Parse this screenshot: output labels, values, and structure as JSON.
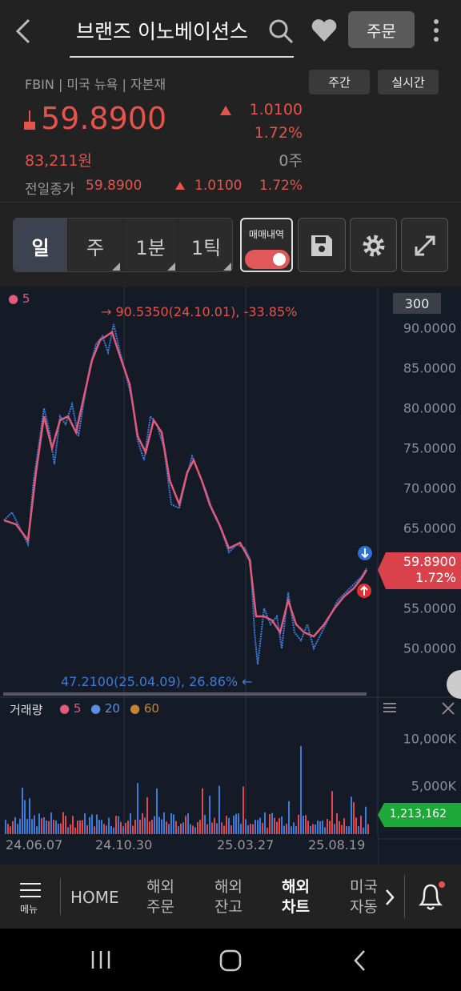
{
  "header": {
    "title": "브랜즈 이노베이션스",
    "order_button": "주문"
  },
  "info": {
    "ticker_line": "FBIN | 미국 뉴욕 | 자본재",
    "tabs": [
      "주간",
      "실시간"
    ],
    "price": "59.8900",
    "change": "1.0100",
    "change_pct": "1.72%",
    "krw": "83,211원",
    "qty": "0주",
    "prev_close_label": "전일종가",
    "prev_close": "59.8900",
    "prev_change": "1.0100",
    "prev_change_pct": "1.72%"
  },
  "toolbar": {
    "periods": [
      "일",
      "주",
      "1분",
      "1틱"
    ],
    "trade_history": "매매내역"
  },
  "price_chart": {
    "ma_legend": "5",
    "count": "300",
    "high_label": "→ 90.5350(24.10.01), -33.85%",
    "low_label": "47.2100(25.04.09), 26.86% ←",
    "axis_labels": [
      "90.0000",
      "85.0000",
      "80.0000",
      "75.0000",
      "70.0000",
      "65.0000",
      "55.0000",
      "50.0000"
    ],
    "last_price": "59.8900",
    "last_pct": "1.72%"
  },
  "volume_chart": {
    "title": "거래량",
    "ma_legend": [
      "5",
      "20",
      "60"
    ],
    "axis_labels": [
      "10,000K",
      "5,000K"
    ],
    "last_volume": "1,213,162",
    "dates": [
      "24.06.07",
      "24.10.30",
      "25.03.27",
      "25.08.19"
    ]
  },
  "bottom_nav": {
    "menu": "메뉴",
    "home": "HOME",
    "items": [
      [
        "해외",
        "주문"
      ],
      [
        "해외",
        "잔고"
      ],
      [
        "해외",
        "차트"
      ],
      [
        "미국",
        "자동"
      ]
    ]
  }
}
